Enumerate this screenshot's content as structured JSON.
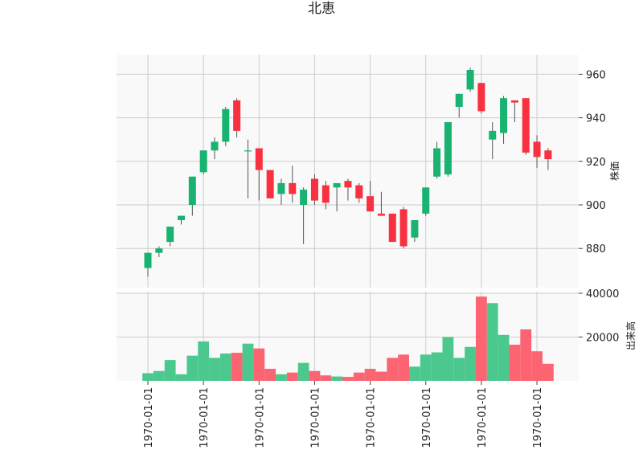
{
  "chart_data": {
    "type": "candlestick",
    "title": "北恵",
    "price_axis": {
      "label": "株価",
      "ylim": [
        862,
        969
      ],
      "ticks": [
        880,
        900,
        920,
        940,
        960
      ]
    },
    "volume_axis": {
      "label": "出来高",
      "ylim": [
        0,
        40000
      ],
      "ticks": [
        20000,
        40000
      ]
    },
    "x_tick_labels": [
      "1970-01-01",
      "1970-01-01",
      "1970-01-01",
      "1970-01-01",
      "1970-01-01",
      "1970-01-01",
      "1970-01-01",
      "1970-01-01"
    ],
    "grid": true,
    "colors": {
      "up": "#18b370",
      "down": "#f8303f",
      "up_volume": "#4bc88e",
      "down_volume": "#fb6470",
      "wick": "#555555",
      "grid": "#cccccc",
      "panel_bg": "#f9f9f9"
    },
    "candles": [
      {
        "open": 871,
        "high": 878,
        "low": 867,
        "close": 878,
        "volume": 3500
      },
      {
        "open": 878,
        "high": 881,
        "low": 876,
        "close": 880,
        "volume": 4500
      },
      {
        "open": 883,
        "high": 890,
        "low": 881,
        "close": 890,
        "volume": 9500
      },
      {
        "open": 893,
        "high": 895,
        "low": 891,
        "close": 895,
        "volume": 3000
      },
      {
        "open": 900,
        "high": 913,
        "low": 895,
        "close": 913,
        "volume": 11500
      },
      {
        "open": 915,
        "high": 925,
        "low": 914,
        "close": 925,
        "volume": 18000
      },
      {
        "open": 925,
        "high": 931,
        "low": 921,
        "close": 929,
        "volume": 10500
      },
      {
        "open": 929,
        "high": 945,
        "low": 927,
        "close": 944,
        "volume": 12500
      },
      {
        "open": 948,
        "high": 949,
        "low": 931,
        "close": 934,
        "volume": 12800
      },
      {
        "open": 925,
        "high": 930,
        "low": 903,
        "close": 925,
        "volume": 17000
      },
      {
        "open": 926,
        "high": 926,
        "low": 902,
        "close": 916,
        "volume": 14800
      },
      {
        "open": 916,
        "high": 916,
        "low": 903,
        "close": 903,
        "volume": 5500
      },
      {
        "open": 905,
        "high": 912,
        "low": 900,
        "close": 910,
        "volume": 3000
      },
      {
        "open": 910,
        "high": 918,
        "low": 901,
        "close": 905,
        "volume": 3800
      },
      {
        "open": 900,
        "high": 908,
        "low": 882,
        "close": 907,
        "volume": 8200
      },
      {
        "open": 912,
        "high": 914,
        "low": 900,
        "close": 902,
        "volume": 4500
      },
      {
        "open": 909,
        "high": 911,
        "low": 898,
        "close": 901,
        "volume": 2500
      },
      {
        "open": 908,
        "high": 910,
        "low": 897,
        "close": 910,
        "volume": 2000
      },
      {
        "open": 911,
        "high": 912,
        "low": 902,
        "close": 908,
        "volume": 1800
      },
      {
        "open": 909,
        "high": 910,
        "low": 901,
        "close": 903,
        "volume": 3800
      },
      {
        "open": 904,
        "high": 911,
        "low": 897,
        "close": 897,
        "volume": 5500
      },
      {
        "open": 896,
        "high": 906,
        "low": 895,
        "close": 895,
        "volume": 4200
      },
      {
        "open": 896,
        "high": 896,
        "low": 883,
        "close": 883,
        "volume": 10500
      },
      {
        "open": 898,
        "high": 899,
        "low": 880,
        "close": 881,
        "volume": 12000
      },
      {
        "open": 885,
        "high": 893,
        "low": 883,
        "close": 893,
        "volume": 6500
      },
      {
        "open": 896,
        "high": 908,
        "low": 895,
        "close": 908,
        "volume": 12000
      },
      {
        "open": 913,
        "high": 929,
        "low": 912,
        "close": 926,
        "volume": 13000
      },
      {
        "open": 914,
        "high": 938,
        "low": 913,
        "close": 938,
        "volume": 20000
      },
      {
        "open": 945,
        "high": 951,
        "low": 940,
        "close": 951,
        "volume": 10500
      },
      {
        "open": 953,
        "high": 963,
        "low": 952,
        "close": 962,
        "volume": 15500
      },
      {
        "open": 956,
        "high": 956,
        "low": 942,
        "close": 943,
        "volume": 38500
      },
      {
        "open": 930,
        "high": 938,
        "low": 921,
        "close": 934,
        "volume": 35500
      },
      {
        "open": 933,
        "high": 950,
        "low": 928,
        "close": 949,
        "volume": 21000
      },
      {
        "open": 948,
        "high": 948,
        "low": 938,
        "close": 947,
        "volume": 16500
      },
      {
        "open": 949,
        "high": 949,
        "low": 923,
        "close": 924,
        "volume": 23500
      },
      {
        "open": 929,
        "high": 932,
        "low": 917,
        "close": 922,
        "volume": 13500
      },
      {
        "open": 925,
        "high": 926,
        "low": 916,
        "close": 921,
        "volume": 7800
      }
    ]
  }
}
